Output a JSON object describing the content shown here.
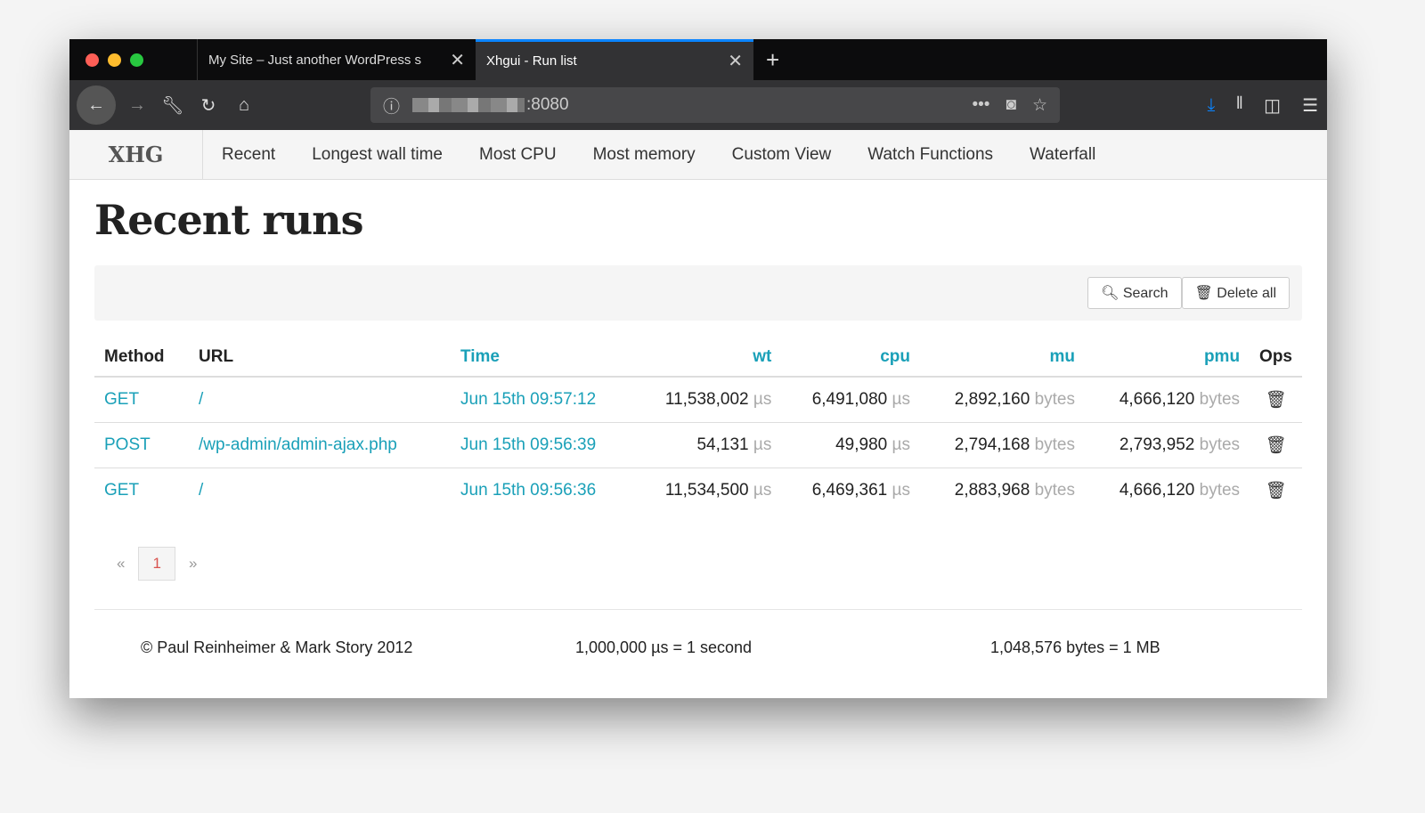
{
  "browser": {
    "tabs": [
      {
        "title": "My Site – Just another WordPress s"
      },
      {
        "title": "Xhgui - Run list"
      }
    ],
    "url": ":8080",
    "colors": {
      "close": "#fe5f57",
      "minimize": "#febc2e",
      "maximize": "#28c840",
      "accent": "#0a84ff"
    }
  },
  "app": {
    "brand": "XHG",
    "nav": [
      "Recent",
      "Longest wall time",
      "Most CPU",
      "Most memory",
      "Custom View",
      "Watch Functions",
      "Waterfall"
    ]
  },
  "page": {
    "title": "Recent runs",
    "search_label": "Search",
    "delete_all_label": "Delete all"
  },
  "table": {
    "headers": [
      "Method",
      "URL",
      "Time",
      "wt",
      "cpu",
      "mu",
      "pmu",
      "Ops"
    ],
    "rows": [
      {
        "method": "GET",
        "url": "/",
        "time": "Jun 15th 09:57:12",
        "wt": "11,538,002",
        "cpu": "6,491,080",
        "mu": "2,892,160",
        "pmu": "4,666,120"
      },
      {
        "method": "POST",
        "url": "/wp-admin/admin-ajax.php",
        "time": "Jun 15th 09:56:39",
        "wt": "54,131",
        "cpu": "49,980",
        "mu": "2,794,168",
        "pmu": "2,793,952"
      },
      {
        "method": "GET",
        "url": "/",
        "time": "Jun 15th 09:56:36",
        "wt": "11,534,500",
        "cpu": "6,469,361",
        "mu": "2,883,968",
        "pmu": "4,666,120"
      }
    ],
    "time_unit": "µs",
    "mem_unit": "bytes"
  },
  "pagination": {
    "prev": "«",
    "current": "1",
    "next": "»"
  },
  "footer": {
    "copyright": "© Paul Reinheimer & Mark Story 2012",
    "time_note": "1,000,000 µs = 1 second",
    "mem_note": "1,048,576 bytes = 1 MB"
  }
}
